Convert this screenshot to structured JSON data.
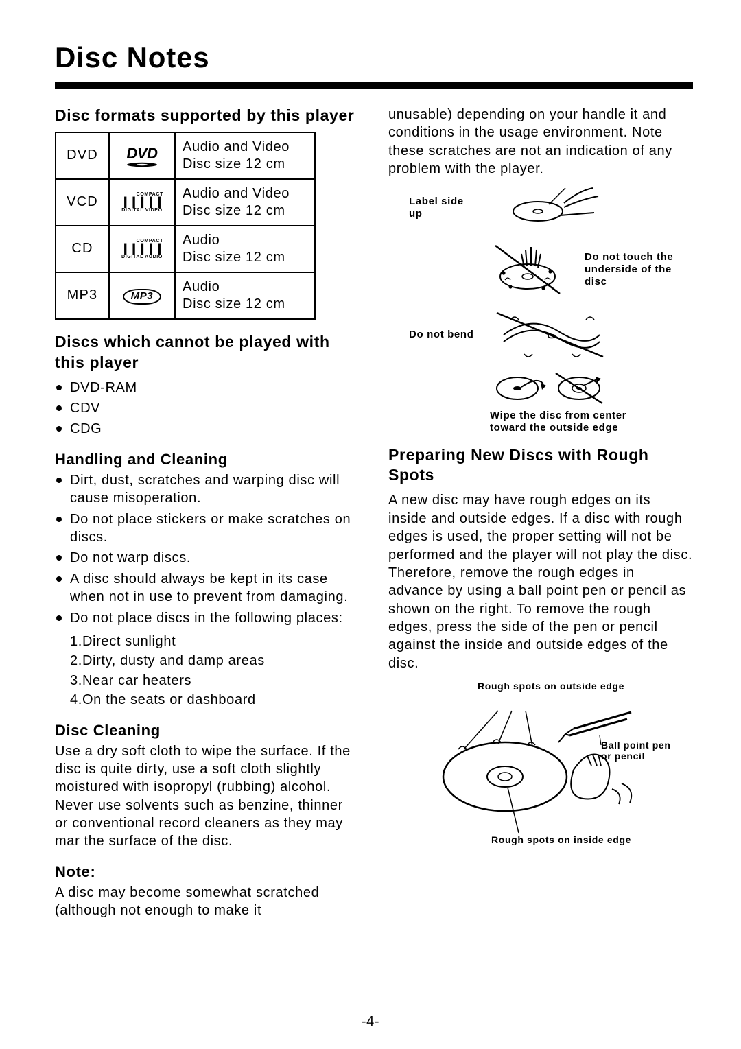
{
  "page": {
    "title": "Disc Notes",
    "number": "-4-"
  },
  "formats_section": {
    "heading": "Disc formats supported by this player",
    "rows": [
      {
        "name": "DVD",
        "logo_type": "dvd",
        "logo_caption": "",
        "desc_l1": "Audio and Video",
        "desc_l2": "Disc size 12 cm"
      },
      {
        "name": "VCD",
        "logo_type": "disc",
        "logo_caption": "DIGITAL VIDEO",
        "desc_l1": "Audio and Video",
        "desc_l2": "Disc size 12 cm"
      },
      {
        "name": "CD",
        "logo_type": "disc",
        "logo_caption": "DIGITAL AUDIO",
        "desc_l1": "Audio",
        "desc_l2": "Disc size 12 cm"
      },
      {
        "name": "MP3",
        "logo_type": "mp3",
        "logo_caption": "",
        "desc_l1": "Audio",
        "desc_l2": "Disc size 12 cm"
      }
    ]
  },
  "cannot_play": {
    "heading": "Discs which cannot be played with this player",
    "items": [
      "DVD-RAM",
      "CDV",
      "CDG"
    ]
  },
  "handling": {
    "heading": "Handling and Cleaning",
    "items": [
      "Dirt, dust, scratches and warping disc will cause misoperation.",
      "Do not place stickers or make scratches on discs.",
      "Do not warp discs.",
      "A disc should always be kept in its case when not in use to prevent from damaging.",
      "Do not place discs in the following places:"
    ],
    "places": [
      "1.Direct sunlight",
      "2.Dirty, dusty and damp areas",
      "3.Near car heaters",
      "4.On the seats or dashboard"
    ]
  },
  "disc_cleaning": {
    "heading": "Disc Cleaning",
    "body": "Use a dry soft cloth to wipe the surface. If the disc is quite dirty, use a soft cloth slightly moistured with isopropyl (rubbing) alcohol.  Never use solvents such as benzine, thinner or conventional record cleaners as they may mar the surface of the disc."
  },
  "note": {
    "heading": "Note:",
    "body_left": "A disc may become somewhat scratched (although not enough to make it",
    "body_right": "unusable) depending on your handle it and conditions in the usage environment. Note these scratches are not an indication of any problem with the player."
  },
  "diagram_labels": {
    "label_side": "Label side up",
    "no_touch": "Do not touch the underside of the disc",
    "no_bend": "Do not bend",
    "wipe": "Wipe the disc from center toward the outside edge"
  },
  "rough": {
    "heading": "Preparing New Discs with Rough Spots",
    "body": "A new disc may have rough edges on its inside and outside edges. If a disc with rough edges is used, the proper setting will not be performed and the player will not play the disc. Therefore, remove the rough edges in advance by using a ball point pen or pencil as shown on the right. To remove the rough edges, press the side of the pen or pencil against the inside and outside edges of the disc.",
    "lbl_outer": "Rough spots on outside edge",
    "lbl_pen": "Ball point pen or pencil",
    "lbl_inner": "Rough spots on inside edge"
  }
}
